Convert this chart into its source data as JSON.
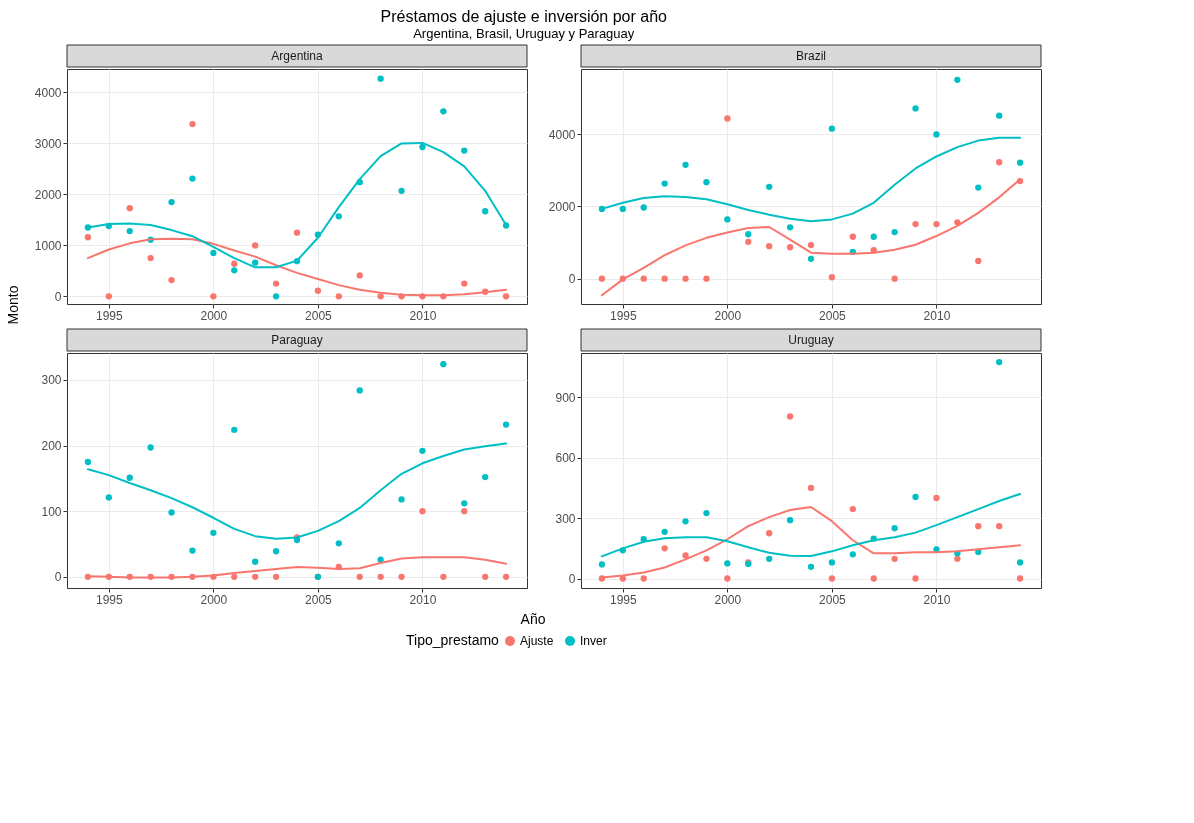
{
  "chart_data": [
    {
      "type": "scatter",
      "title": "Argentina",
      "annotations": [
        "Préstamos de ajuste e inversión por año",
        "Argentina, Brasil, Uruguay y Paraguay"
      ],
      "xlabel": "Año",
      "ylabel": "Monto",
      "legend_title": "Tipo_prestamo",
      "legend": "bottom",
      "grid": true,
      "marker": "circle",
      "line_style": "solid",
      "xlim": [
        1993,
        2015
      ],
      "xticks": [
        1995,
        2000,
        2005,
        2010
      ],
      "ylim": [
        -150,
        4460
      ],
      "yticks": [
        0,
        1000,
        2000,
        3000,
        4000
      ],
      "x": [
        1994,
        1995,
        1996,
        1997,
        1998,
        1999,
        2000,
        2001,
        2002,
        2003,
        2004,
        2005,
        2006,
        2007,
        2008,
        2009,
        2010,
        2011,
        2012,
        2013,
        2014
      ],
      "series": [
        {
          "name": "Ajuste",
          "color": "#f8766d",
          "values": [
            1160,
            0,
            1730,
            750,
            320,
            3380,
            0,
            640,
            1000,
            250,
            1250,
            110,
            0,
            410,
            0,
            0,
            0,
            0,
            250,
            90,
            0
          ]
        },
        {
          "name": "Inver",
          "color": "#00bfc4",
          "values": [
            1350,
            1380,
            1280,
            1110,
            1850,
            2310,
            850,
            510,
            660,
            0,
            690,
            1210,
            1570,
            2240,
            4270,
            2070,
            2930,
            3630,
            2860,
            1670,
            1390
          ]
        },
        {
          "type": "line",
          "marker": "none",
          "color": "#f8766d",
          "values": [
            750,
            920,
            1040,
            1120,
            1130,
            1120,
            1030,
            900,
            780,
            610,
            460,
            340,
            220,
            130,
            70,
            30,
            20,
            20,
            40,
            80,
            130
          ]
        },
        {
          "type": "line",
          "marker": "none",
          "color": "#00bfc4",
          "values": [
            1350,
            1420,
            1430,
            1400,
            1300,
            1180,
            970,
            750,
            570,
            570,
            700,
            1150,
            1750,
            2300,
            2750,
            3000,
            3010,
            2830,
            2550,
            2070,
            1400
          ]
        }
      ]
    },
    {
      "type": "scatter",
      "title": "Brazil",
      "grid": true,
      "marker": "circle",
      "line_style": "solid",
      "xlim": [
        1993,
        2015
      ],
      "xticks": [
        1995,
        2000,
        2005,
        2010
      ],
      "ylim": [
        -700,
        5800
      ],
      "yticks": [
        0,
        2000,
        4000
      ],
      "x": [
        1994,
        1995,
        1996,
        1997,
        1998,
        1999,
        2000,
        2001,
        2002,
        2003,
        2004,
        2005,
        2006,
        2007,
        2008,
        2009,
        2010,
        2011,
        2012,
        2013,
        2014
      ],
      "series": [
        {
          "name": "Ajuste",
          "color": "#f8766d",
          "values": [
            0,
            0,
            0,
            0,
            0,
            0,
            4430,
            1020,
            900,
            870,
            930,
            40,
            1160,
            790,
            0,
            1510,
            1510,
            1560,
            490,
            3220,
            2700
          ]
        },
        {
          "name": "Inver",
          "color": "#00bfc4",
          "values": [
            1930,
            1930,
            1970,
            2630,
            3150,
            2670,
            1640,
            1230,
            2540,
            1420,
            550,
            4150,
            740,
            1160,
            1290,
            4710,
            3990,
            5500,
            2520,
            4510,
            3210
          ]
        },
        {
          "type": "line",
          "marker": "none",
          "color": "#f8766d",
          "values": [
            -460,
            -20,
            300,
            650,
            920,
            1130,
            1280,
            1400,
            1430,
            1080,
            720,
            690,
            690,
            720,
            800,
            940,
            1180,
            1460,
            1820,
            2250,
            2750
          ]
        },
        {
          "type": "line",
          "marker": "none",
          "color": "#00bfc4",
          "values": [
            1930,
            2100,
            2230,
            2280,
            2260,
            2200,
            2060,
            1900,
            1770,
            1660,
            1590,
            1640,
            1800,
            2100,
            2600,
            3050,
            3380,
            3640,
            3820,
            3900,
            3900
          ]
        }
      ]
    },
    {
      "type": "scatter",
      "title": "Paraguay",
      "grid": true,
      "marker": "circle",
      "line_style": "solid",
      "xlim": [
        1993,
        2015
      ],
      "xticks": [
        1995,
        2000,
        2005,
        2010
      ],
      "ylim": [
        -17,
        341
      ],
      "yticks": [
        0,
        100,
        200,
        300
      ],
      "x": [
        1994,
        1995,
        1996,
        1997,
        1998,
        1999,
        2000,
        2001,
        2002,
        2003,
        2004,
        2005,
        2006,
        2007,
        2008,
        2009,
        2010,
        2011,
        2012,
        2013,
        2014
      ],
      "series": [
        {
          "name": "Ajuste",
          "color": "#f8766d",
          "values": [
            0,
            0,
            0,
            0,
            0,
            0,
            0,
            0,
            0,
            0,
            60,
            0,
            15,
            0,
            0,
            0,
            100,
            0,
            100,
            0,
            0
          ]
        },
        {
          "name": "Inver",
          "color": "#00bfc4",
          "values": [
            175,
            121,
            151,
            197,
            98,
            40,
            67,
            224,
            23,
            39,
            56,
            0,
            51,
            284,
            26,
            118,
            192,
            324,
            112,
            152,
            232
          ]
        },
        {
          "type": "line",
          "marker": "none",
          "color": "#f8766d",
          "values": [
            1,
            0,
            -1,
            -1,
            -1,
            0,
            2,
            6,
            9,
            12,
            15,
            14,
            12,
            13,
            21,
            28,
            30,
            30,
            30,
            26,
            20
          ]
        },
        {
          "type": "line",
          "marker": "none",
          "color": "#00bfc4",
          "values": [
            164,
            155,
            143,
            132,
            120,
            106,
            90,
            73,
            62,
            58,
            60,
            70,
            85,
            105,
            132,
            157,
            173,
            184,
            194,
            199,
            203
          ]
        }
      ]
    },
    {
      "type": "scatter",
      "title": "Uruguay",
      "grid": true,
      "marker": "circle",
      "line_style": "solid",
      "xlim": [
        1993,
        2015
      ],
      "xticks": [
        1995,
        2000,
        2005,
        2010
      ],
      "ylim": [
        -47,
        1120
      ],
      "yticks": [
        0,
        300,
        600,
        900
      ],
      "x": [
        1994,
        1995,
        1996,
        1997,
        1998,
        1999,
        2000,
        2001,
        2002,
        2003,
        2004,
        2005,
        2006,
        2007,
        2008,
        2009,
        2010,
        2011,
        2012,
        2013,
        2014
      ],
      "series": [
        {
          "name": "Ajuste",
          "color": "#f8766d",
          "values": [
            0,
            0,
            0,
            150,
            115,
            98,
            0,
            80,
            225,
            805,
            450,
            0,
            345,
            0,
            98,
            0,
            400,
            98,
            260,
            260,
            0
          ]
        },
        {
          "name": "Inver",
          "color": "#00bfc4",
          "values": [
            70,
            140,
            195,
            232,
            284,
            325,
            75,
            72,
            98,
            290,
            58,
            80,
            120,
            198,
            250,
            405,
            145,
            125,
            132,
            1075,
            80
          ]
        },
        {
          "type": "line",
          "marker": "none",
          "color": "#f8766d",
          "values": [
            5,
            15,
            30,
            55,
            95,
            140,
            195,
            260,
            305,
            340,
            355,
            285,
            190,
            125,
            125,
            130,
            130,
            135,
            145,
            155,
            165
          ]
        },
        {
          "type": "line",
          "marker": "none",
          "color": "#00bfc4",
          "values": [
            110,
            150,
            183,
            200,
            205,
            205,
            185,
            155,
            128,
            113,
            112,
            135,
            165,
            190,
            205,
            228,
            265,
            305,
            345,
            385,
            420
          ]
        }
      ]
    }
  ]
}
